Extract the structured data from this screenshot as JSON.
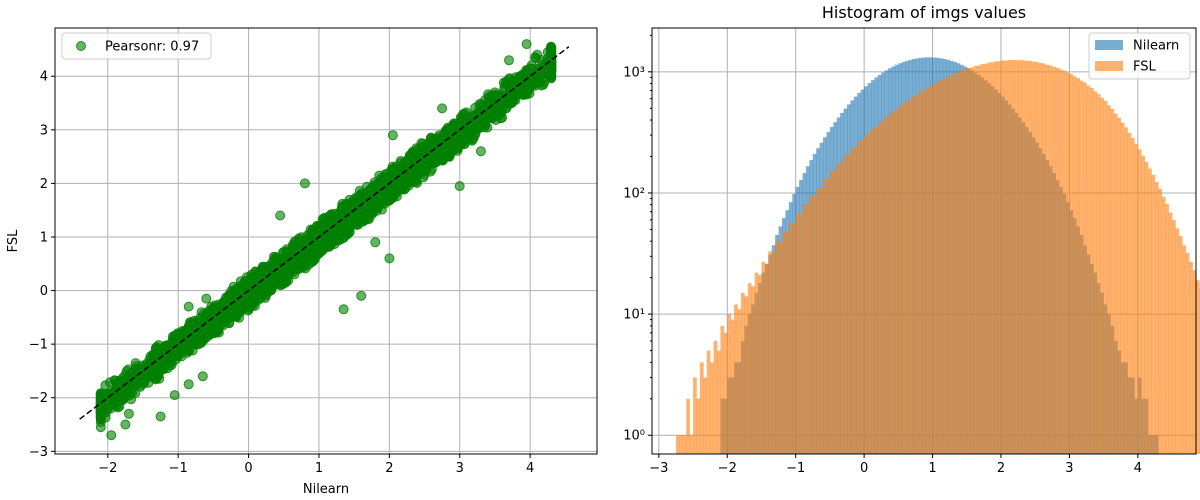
{
  "chart_data": [
    {
      "type": "scatter",
      "title": "",
      "xlabel": "Nilearn",
      "ylabel": "FSL",
      "xlim": [
        -2.75,
        4.95
      ],
      "ylim": [
        -3.05,
        4.9
      ],
      "xticks": [
        -2,
        -1,
        0,
        1,
        2,
        3,
        4
      ],
      "yticks": [
        -3,
        -2,
        -1,
        0,
        1,
        2,
        3,
        4
      ],
      "grid": true,
      "legend_position": "top-left",
      "series": [
        {
          "name": "Pearsonr: 0.97",
          "color": "#008000",
          "alpha": 0.6,
          "band": {
            "x_min": -2.1,
            "x_max": 4.3,
            "slope": 1.0,
            "intercept": -0.05,
            "half_width": 0.35
          },
          "points": [
            {
              "x": -2.1,
              "y": -2.55
            },
            {
              "x": -1.95,
              "y": -2.7
            },
            {
              "x": -1.75,
              "y": -2.5
            },
            {
              "x": -1.7,
              "y": -2.3
            },
            {
              "x": -1.25,
              "y": -2.35
            },
            {
              "x": -1.05,
              "y": -1.95
            },
            {
              "x": -0.85,
              "y": -1.75
            },
            {
              "x": -0.65,
              "y": -1.6
            },
            {
              "x": -0.85,
              "y": -0.3
            },
            {
              "x": -0.6,
              "y": -0.15
            },
            {
              "x": 0.45,
              "y": 1.4
            },
            {
              "x": 0.8,
              "y": 2.0
            },
            {
              "x": 1.35,
              "y": -0.35
            },
            {
              "x": 1.6,
              "y": -0.1
            },
            {
              "x": 1.8,
              "y": 0.9
            },
            {
              "x": 2.0,
              "y": 0.6
            },
            {
              "x": 2.05,
              "y": 2.9
            },
            {
              "x": 2.75,
              "y": 3.4
            },
            {
              "x": 3.0,
              "y": 1.95
            },
            {
              "x": 3.3,
              "y": 2.6
            },
            {
              "x": 3.7,
              "y": 4.3
            },
            {
              "x": 3.95,
              "y": 4.6
            },
            {
              "x": 4.1,
              "y": 4.4
            },
            {
              "x": 4.25,
              "y": 4.45
            }
          ]
        }
      ],
      "reference_line": {
        "x": [
          -2.4,
          4.55
        ],
        "y": [
          -2.4,
          4.55
        ],
        "color": "#000000",
        "style": "dashed"
      }
    },
    {
      "type": "histogram",
      "title": "Histogram of imgs values",
      "xlabel": "",
      "ylabel": "",
      "xlim": [
        -3.1,
        4.85
      ],
      "ylim": [
        0.7,
        2300
      ],
      "y_scale": "log",
      "xticks": [
        -3,
        -2,
        -1,
        0,
        1,
        2,
        3,
        4
      ],
      "yticks": [
        1,
        10,
        100,
        1000
      ],
      "ytick_labels": [
        "10⁰",
        "10¹",
        "10²",
        "10³"
      ],
      "grid": true,
      "legend_position": "top-right",
      "series": [
        {
          "name": "Nilearn",
          "color": "#1f77b4",
          "alpha": 0.6,
          "bin_start": -2.1,
          "bin_width": 0.05,
          "counts": [
            2,
            2,
            3,
            3,
            4,
            4,
            6,
            8,
            10,
            12,
            15,
            18,
            22,
            26,
            31,
            37,
            45,
            53,
            62,
            72,
            84,
            98,
            112,
            128,
            146,
            166,
            187,
            210,
            234,
            260,
            288,
            318,
            350,
            384,
            420,
            458,
            497,
            538,
            580,
            624,
            668,
            714,
            760,
            806,
            852,
            898,
            942,
            986,
            1028,
            1068,
            1106,
            1142,
            1176,
            1206,
            1232,
            1256,
            1276,
            1292,
            1304,
            1312,
            1316,
            1316,
            1312,
            1304,
            1292,
            1276,
            1256,
            1232,
            1206,
            1176,
            1142,
            1106,
            1068,
            1028,
            986,
            942,
            898,
            852,
            806,
            760,
            714,
            668,
            624,
            580,
            538,
            497,
            458,
            420,
            384,
            350,
            318,
            288,
            260,
            234,
            210,
            187,
            166,
            146,
            128,
            112,
            98,
            84,
            72,
            62,
            53,
            45,
            37,
            31,
            26,
            22,
            18,
            15,
            12,
            10,
            8,
            6,
            5,
            4,
            4,
            3,
            3,
            2,
            3,
            2,
            2,
            1,
            1,
            1
          ]
        },
        {
          "name": "FSL",
          "color": "#ff7f0e",
          "alpha": 0.6,
          "bin_start": -2.75,
          "bin_width": 0.05,
          "counts": [
            1,
            1,
            1,
            2,
            1,
            3,
            2,
            4,
            3,
            5,
            4,
            6,
            5,
            8,
            7,
            10,
            9,
            12,
            11,
            15,
            14,
            18,
            17,
            22,
            21,
            27,
            26,
            33,
            32,
            40,
            39,
            48,
            47,
            57,
            56,
            68,
            67,
            80,
            80,
            95,
            95,
            112,
            112,
            131,
            132,
            153,
            154,
            177,
            179,
            204,
            207,
            234,
            238,
            267,
            272,
            303,
            309,
            342,
            349,
            384,
            392,
            429,
            438,
            476,
            487,
            526,
            538,
            578,
            591,
            632,
            646,
            688,
            702,
            745,
            760,
            803,
            818,
            861,
            876,
            918,
            932,
            973,
            986,
            1026,
            1038,
            1075,
            1085,
            1120,
            1128,
            1161,
            1166,
            1195,
            1198,
            1222,
            1222,
            1242,
            1238,
            1253,
            1246,
            1255,
            1244,
            1248,
            1234,
            1232,
            1214,
            1206,
            1184,
            1172,
            1146,
            1130,
            1100,
            1080,
            1046,
            1022,
            985,
            958,
            918,
            888,
            846,
            814,
            770,
            736,
            690,
            655,
            610,
            575,
            530,
            495,
            452,
            418,
            380,
            348,
            313,
            285,
            254,
            229,
            203,
            181,
            159,
            141,
            123,
            108,
            93,
            81,
            69,
            60,
            51,
            44,
            37,
            32,
            27,
            23,
            19,
            16,
            14,
            12,
            10,
            8,
            7,
            6,
            5,
            4,
            4,
            3,
            3,
            2,
            2,
            2,
            1,
            1
          ]
        }
      ]
    }
  ]
}
